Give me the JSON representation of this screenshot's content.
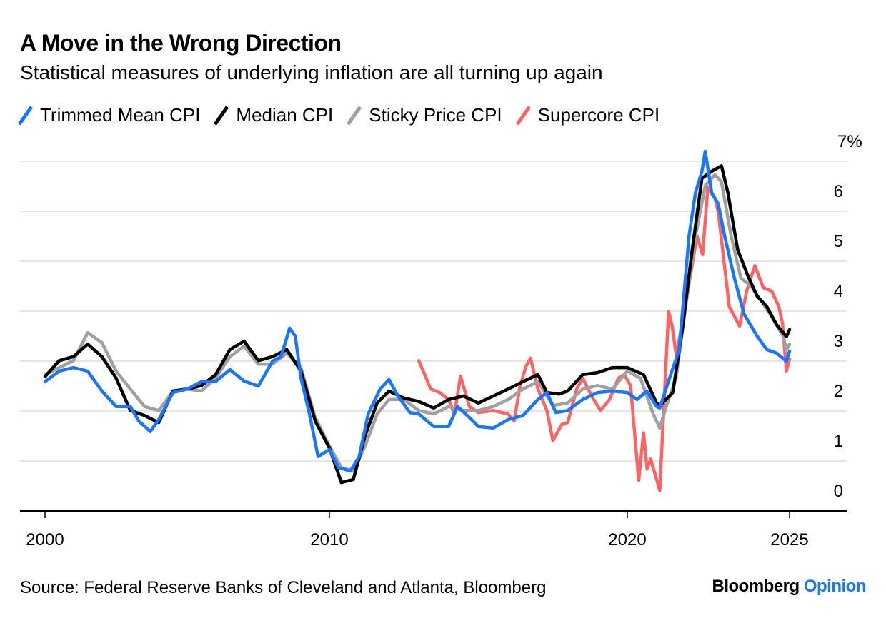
{
  "header": {
    "title": "A Move in the Wrong Direction",
    "subtitle": "Statistical measures of underlying inflation are all turning up again"
  },
  "footer": {
    "source": "Source: Federal Reserve Banks of Cleveland and Atlanta, Bloomberg",
    "logo_brand": "Bloomberg",
    "logo_suffix": "Opinion"
  },
  "chart_data": {
    "type": "line",
    "title": "A Move in the Wrong Direction",
    "subtitle": "Statistical measures of underlying inflation are all turning up again",
    "xlabel": "",
    "ylabel": "",
    "x_ticks": [
      2000,
      2010,
      2020,
      2025
    ],
    "y_ticks": [
      "0",
      "1",
      "2",
      "3",
      "4",
      "5",
      "6",
      "7%"
    ],
    "ylim": [
      0,
      7
    ],
    "xlim": [
      2000,
      2025
    ],
    "grid": "horizontal",
    "legend_position": "top-left",
    "y_axis_side": "right",
    "series": [
      {
        "name": "Trimmed Mean CPI",
        "color": "#1a75ff",
        "x": [
          2000,
          2000.5,
          2001,
          2001.5,
          2002,
          2002.5,
          2003,
          2003.3,
          2003.7,
          2004,
          2004.5,
          2005,
          2005.5,
          2006,
          2006.5,
          2007,
          2007.5,
          2008,
          2008.3,
          2008.6,
          2008.8,
          2009,
          2009.3,
          2009.6,
          2010,
          2010.3,
          2010.7,
          2011,
          2011.3,
          2011.7,
          2012,
          2012.3,
          2012.7,
          2013,
          2013.5,
          2014,
          2014.3,
          2014.7,
          2015,
          2015.5,
          2016,
          2016.5,
          2017,
          2017.3,
          2017.6,
          2018,
          2018.5,
          2019,
          2019.5,
          2020,
          2020.3,
          2020.6,
          2020.9,
          2021,
          2021.3,
          2021.6,
          2021.9,
          2022.1,
          2022.3,
          2022.4,
          2022.6,
          2022.8,
          2023,
          2023.3,
          2023.6,
          2024,
          2024.3,
          2024.6,
          2024.9,
          2025
        ],
        "y": [
          2.59,
          2.8,
          2.87,
          2.8,
          2.4,
          2.09,
          2.09,
          1.8,
          1.59,
          1.83,
          2.37,
          2.44,
          2.59,
          2.59,
          2.83,
          2.6,
          2.5,
          3.0,
          3.09,
          3.66,
          3.5,
          2.66,
          1.94,
          1.09,
          1.23,
          0.87,
          0.8,
          1.09,
          1.94,
          2.44,
          2.63,
          2.3,
          1.97,
          1.94,
          1.69,
          1.69,
          2.09,
          1.87,
          1.69,
          1.66,
          1.83,
          1.91,
          2.23,
          2.37,
          1.97,
          2.01,
          2.23,
          2.37,
          2.4,
          2.37,
          2.23,
          2.4,
          2.09,
          2.06,
          2.66,
          3.23,
          5.5,
          6.37,
          6.8,
          7.2,
          6.37,
          6.15,
          5.5,
          4.66,
          3.94,
          3.5,
          3.23,
          3.16,
          3.0,
          3.2
        ]
      },
      {
        "name": "Median CPI",
        "color": "#000000",
        "x": [
          2000,
          2000.5,
          2001,
          2001.5,
          2002,
          2002.5,
          2003,
          2003.5,
          2004,
          2004.5,
          2005,
          2005.5,
          2006,
          2006.5,
          2007,
          2007.5,
          2008,
          2008.5,
          2009,
          2009.5,
          2010,
          2010.4,
          2010.8,
          2011.2,
          2011.6,
          2012,
          2012.5,
          2013,
          2013.5,
          2014,
          2014.5,
          2015,
          2015.5,
          2016,
          2016.5,
          2017,
          2017.3,
          2017.7,
          2018,
          2018.5,
          2019,
          2019.5,
          2020,
          2020.5,
          2020.9,
          2021,
          2021.4,
          2021.7,
          2022,
          2022.3,
          2022.6,
          2022.9,
          2023.1,
          2023.4,
          2023.7,
          2024,
          2024.3,
          2024.6,
          2024.9,
          2025
        ],
        "y": [
          2.69,
          3.01,
          3.09,
          3.34,
          3.09,
          2.66,
          2.01,
          1.91,
          1.77,
          2.4,
          2.44,
          2.51,
          2.73,
          3.23,
          3.4,
          3.01,
          3.09,
          3.23,
          2.8,
          1.8,
          1.26,
          0.57,
          0.63,
          1.51,
          2.16,
          2.4,
          2.26,
          2.19,
          2.06,
          2.23,
          2.3,
          2.16,
          2.3,
          2.44,
          2.59,
          2.73,
          2.37,
          2.34,
          2.4,
          2.73,
          2.77,
          2.87,
          2.87,
          2.73,
          2.16,
          2.11,
          2.37,
          3.66,
          5.23,
          6.66,
          6.8,
          6.91,
          6.37,
          5.23,
          4.73,
          4.3,
          4.09,
          3.73,
          3.49,
          3.63
        ]
      },
      {
        "name": "Sticky Price CPI",
        "color": "#a0a0a0",
        "x": [
          2000,
          2001,
          2001.5,
          2002,
          2002.5,
          2003,
          2003.5,
          2004,
          2004.5,
          2005,
          2005.5,
          2006,
          2006.5,
          2007,
          2007.5,
          2008,
          2008.5,
          2009,
          2009.5,
          2010,
          2010.4,
          2010.8,
          2011.2,
          2011.6,
          2012,
          2012.5,
          2013,
          2013.5,
          2014,
          2014.5,
          2015,
          2015.5,
          2016,
          2016.5,
          2017,
          2017.5,
          2018,
          2018.5,
          2019,
          2019.5,
          2020,
          2020.4,
          2020.8,
          2021,
          2021.2,
          2021.5,
          2021.8,
          2022.1,
          2022.4,
          2022.7,
          2022.9,
          2023.2,
          2023.5,
          2023.8,
          2024.1,
          2024.4,
          2024.8,
          2024.9,
          2025
        ],
        "y": [
          2.73,
          3.01,
          3.57,
          3.37,
          2.8,
          2.44,
          2.09,
          2.01,
          2.4,
          2.44,
          2.4,
          2.66,
          3.09,
          3.3,
          2.94,
          2.94,
          3.16,
          2.87,
          1.87,
          1.3,
          0.87,
          0.8,
          1.3,
          1.94,
          2.23,
          2.23,
          2.01,
          1.94,
          2.09,
          2.01,
          2.01,
          2.09,
          2.23,
          2.44,
          2.59,
          2.11,
          2.16,
          2.44,
          2.51,
          2.44,
          2.8,
          2.66,
          1.94,
          1.66,
          2.09,
          2.66,
          4.09,
          5.5,
          6.51,
          6.73,
          6.59,
          5.5,
          4.66,
          4.51,
          4.23,
          3.94,
          3.5,
          3.23,
          3.34
        ]
      },
      {
        "name": "Supercore CPI",
        "color": "#ff6464",
        "x": [
          2013,
          2013.2,
          2013.4,
          2013.7,
          2014,
          2014.2,
          2014.4,
          2014.7,
          2015,
          2015.5,
          2016,
          2016.2,
          2016.4,
          2016.6,
          2016.75,
          2017,
          2017.3,
          2017.5,
          2017.8,
          2018,
          2018.3,
          2018.5,
          2018.8,
          2019.1,
          2019.4,
          2019.7,
          2019.9,
          2020.1,
          2020.35,
          2020.5,
          2020.61,
          2020.72,
          2021,
          2021.27,
          2021.38,
          2021.51,
          2022.15,
          2022.32,
          2022.48,
          2022.7,
          2022.8,
          2023.14,
          2023.46,
          2023.68,
          2023.93,
          2024.19,
          2024.45,
          2024.67,
          2024.78,
          2024.85,
          2024.9,
          2025
        ],
        "y": [
          3.01,
          2.73,
          2.44,
          2.37,
          2.23,
          1.94,
          2.7,
          2.09,
          1.97,
          2.01,
          1.94,
          1.8,
          2.5,
          2.9,
          3.06,
          2.44,
          2.01,
          1.41,
          1.73,
          1.77,
          2.44,
          2.66,
          2.3,
          2.01,
          2.23,
          2.66,
          2.73,
          2.51,
          0.61,
          1.56,
          0.84,
          1.04,
          0.41,
          3.99,
          3.7,
          3.09,
          5.5,
          5.13,
          6.47,
          6.26,
          6.0,
          4.09,
          3.7,
          4.41,
          4.91,
          4.47,
          4.4,
          4.09,
          3.76,
          3.23,
          2.8,
          3.04
        ]
      }
    ]
  }
}
